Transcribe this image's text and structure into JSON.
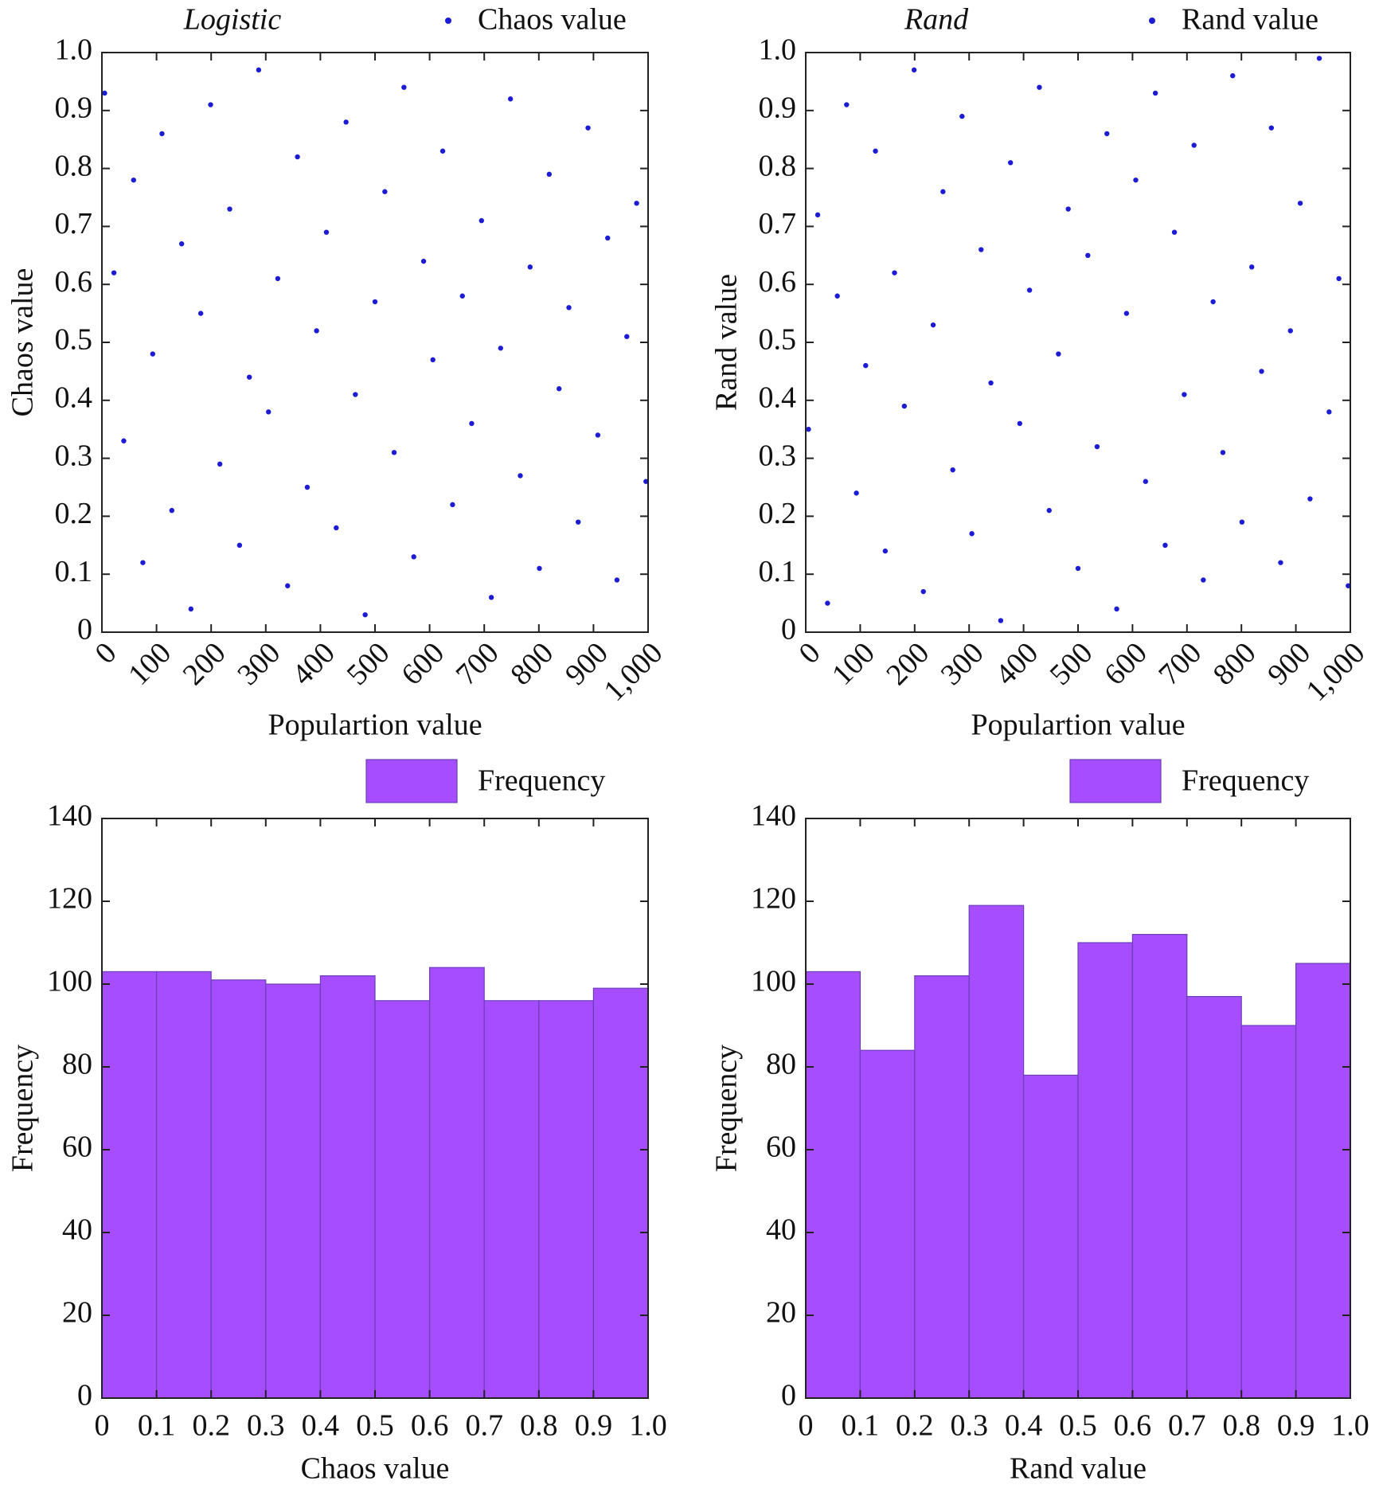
{
  "chart_data": [
    {
      "type": "scatter",
      "title": "Logistic",
      "x_label": "Populartion value",
      "y_label": "Chaos value",
      "x": [
        5,
        22,
        40,
        58,
        75,
        93,
        110,
        128,
        146,
        163,
        181,
        199,
        216,
        234,
        252,
        270,
        287,
        305,
        322,
        340,
        358,
        376,
        393,
        411,
        429,
        447,
        464,
        482,
        500,
        518,
        535,
        553,
        571,
        589,
        606,
        624,
        642,
        660,
        677,
        695,
        713,
        730,
        748,
        766,
        784,
        801,
        819,
        837,
        855,
        872,
        890,
        908,
        926,
        943,
        961,
        979,
        996
      ],
      "series": [
        {
          "name": "Chaos value",
          "color": "#1c1cd4",
          "values": [
            0.93,
            0.62,
            0.33,
            0.78,
            0.12,
            0.48,
            0.86,
            0.21,
            0.67,
            0.04,
            0.55,
            0.91,
            0.29,
            0.73,
            0.15,
            0.44,
            0.97,
            0.38,
            0.61,
            0.08,
            0.82,
            0.25,
            0.52,
            0.69,
            0.18,
            0.88,
            0.41,
            0.03,
            0.57,
            0.76,
            0.31,
            0.94,
            0.13,
            0.64,
            0.47,
            0.83,
            0.22,
            0.58,
            0.36,
            0.71,
            0.06,
            0.49,
            0.92,
            0.27,
            0.63,
            0.11,
            0.79,
            0.42,
            0.56,
            0.19,
            0.87,
            0.34,
            0.68,
            0.09,
            0.51,
            0.74,
            0.26
          ]
        }
      ],
      "xlim": [
        0,
        1000
      ],
      "xticks": [
        0,
        100,
        200,
        300,
        400,
        500,
        600,
        700,
        800,
        900,
        {
          "value": 1000,
          "label": "1,000"
        }
      ],
      "ylim": [
        0,
        1
      ],
      "yticks": [
        0,
        0.1,
        0.2,
        0.3,
        0.4,
        0.5,
        0.6,
        0.7,
        0.8,
        0.9,
        {
          "value": 1,
          "label": "1.0"
        }
      ]
    },
    {
      "type": "scatter",
      "title": "Rand",
      "x_label": "Populartion value",
      "y_label": "Rand value",
      "x": [
        5,
        22,
        40,
        58,
        75,
        93,
        110,
        128,
        146,
        163,
        181,
        199,
        216,
        234,
        252,
        270,
        287,
        305,
        322,
        340,
        358,
        376,
        393,
        411,
        429,
        447,
        464,
        482,
        500,
        518,
        535,
        553,
        571,
        589,
        606,
        624,
        642,
        660,
        677,
        695,
        713,
        730,
        748,
        766,
        784,
        801,
        819,
        837,
        855,
        872,
        890,
        908,
        926,
        943,
        961,
        979,
        996
      ],
      "series": [
        {
          "name": "Rand value",
          "color": "#1c1cd4",
          "values": [
            0.35,
            0.72,
            0.05,
            0.58,
            0.91,
            0.24,
            0.46,
            0.83,
            0.14,
            0.62,
            0.39,
            0.97,
            0.07,
            0.53,
            0.76,
            0.28,
            0.89,
            0.17,
            0.66,
            0.43,
            0.02,
            0.81,
            0.36,
            0.59,
            0.94,
            0.21,
            0.48,
            0.73,
            0.11,
            0.65,
            0.32,
            0.86,
            0.04,
            0.55,
            0.78,
            0.26,
            0.93,
            0.15,
            0.69,
            0.41,
            0.84,
            0.09,
            0.57,
            0.31,
            0.96,
            0.19,
            0.63,
            0.45,
            0.87,
            0.12,
            0.52,
            0.74,
            0.23,
            0.99,
            0.38,
            0.61,
            0.08
          ]
        }
      ],
      "xlim": [
        0,
        1000
      ],
      "xticks": [
        0,
        100,
        200,
        300,
        400,
        500,
        600,
        700,
        800,
        900,
        {
          "value": 1000,
          "label": "1,000"
        }
      ],
      "ylim": [
        0,
        1
      ],
      "yticks": [
        0,
        0.1,
        0.2,
        0.3,
        0.4,
        0.5,
        0.6,
        0.7,
        0.8,
        0.9,
        {
          "value": 1,
          "label": "1.0"
        }
      ]
    },
    {
      "type": "histogram",
      "x_label": "Chaos value",
      "y_label": "Frequency",
      "bins": [
        0,
        0.1,
        0.2,
        0.3,
        0.4,
        0.5,
        0.6,
        0.7,
        0.8,
        0.9,
        1
      ],
      "series": [
        {
          "name": "Frequency",
          "color": "#a64dff",
          "values": [
            103,
            103,
            101,
            100,
            102,
            96,
            104,
            96,
            96,
            99
          ]
        }
      ],
      "xlim": [
        0,
        1
      ],
      "xticks": [
        0,
        0.1,
        0.2,
        0.3,
        0.4,
        0.5,
        0.6,
        0.7,
        0.8,
        0.9,
        {
          "value": 1,
          "label": "1.0"
        }
      ],
      "ylim": [
        0,
        140
      ],
      "yticks": [
        0,
        20,
        40,
        60,
        80,
        100,
        120,
        140
      ]
    },
    {
      "type": "histogram",
      "x_label": "Rand value",
      "y_label": "Frequency",
      "bins": [
        0,
        0.1,
        0.2,
        0.3,
        0.4,
        0.5,
        0.6,
        0.7,
        0.8,
        0.9,
        1
      ],
      "series": [
        {
          "name": "Frequency",
          "color": "#a64dff",
          "values": [
            103,
            84,
            102,
            119,
            78,
            110,
            112,
            97,
            90,
            105
          ]
        }
      ],
      "xlim": [
        0,
        1
      ],
      "xticks": [
        0,
        0.1,
        0.2,
        0.3,
        0.4,
        0.5,
        0.6,
        0.7,
        0.8,
        0.9,
        {
          "value": 1,
          "label": "1.0"
        }
      ],
      "ylim": [
        0,
        140
      ],
      "yticks": [
        0,
        20,
        40,
        60,
        80,
        100,
        120,
        140
      ]
    }
  ]
}
